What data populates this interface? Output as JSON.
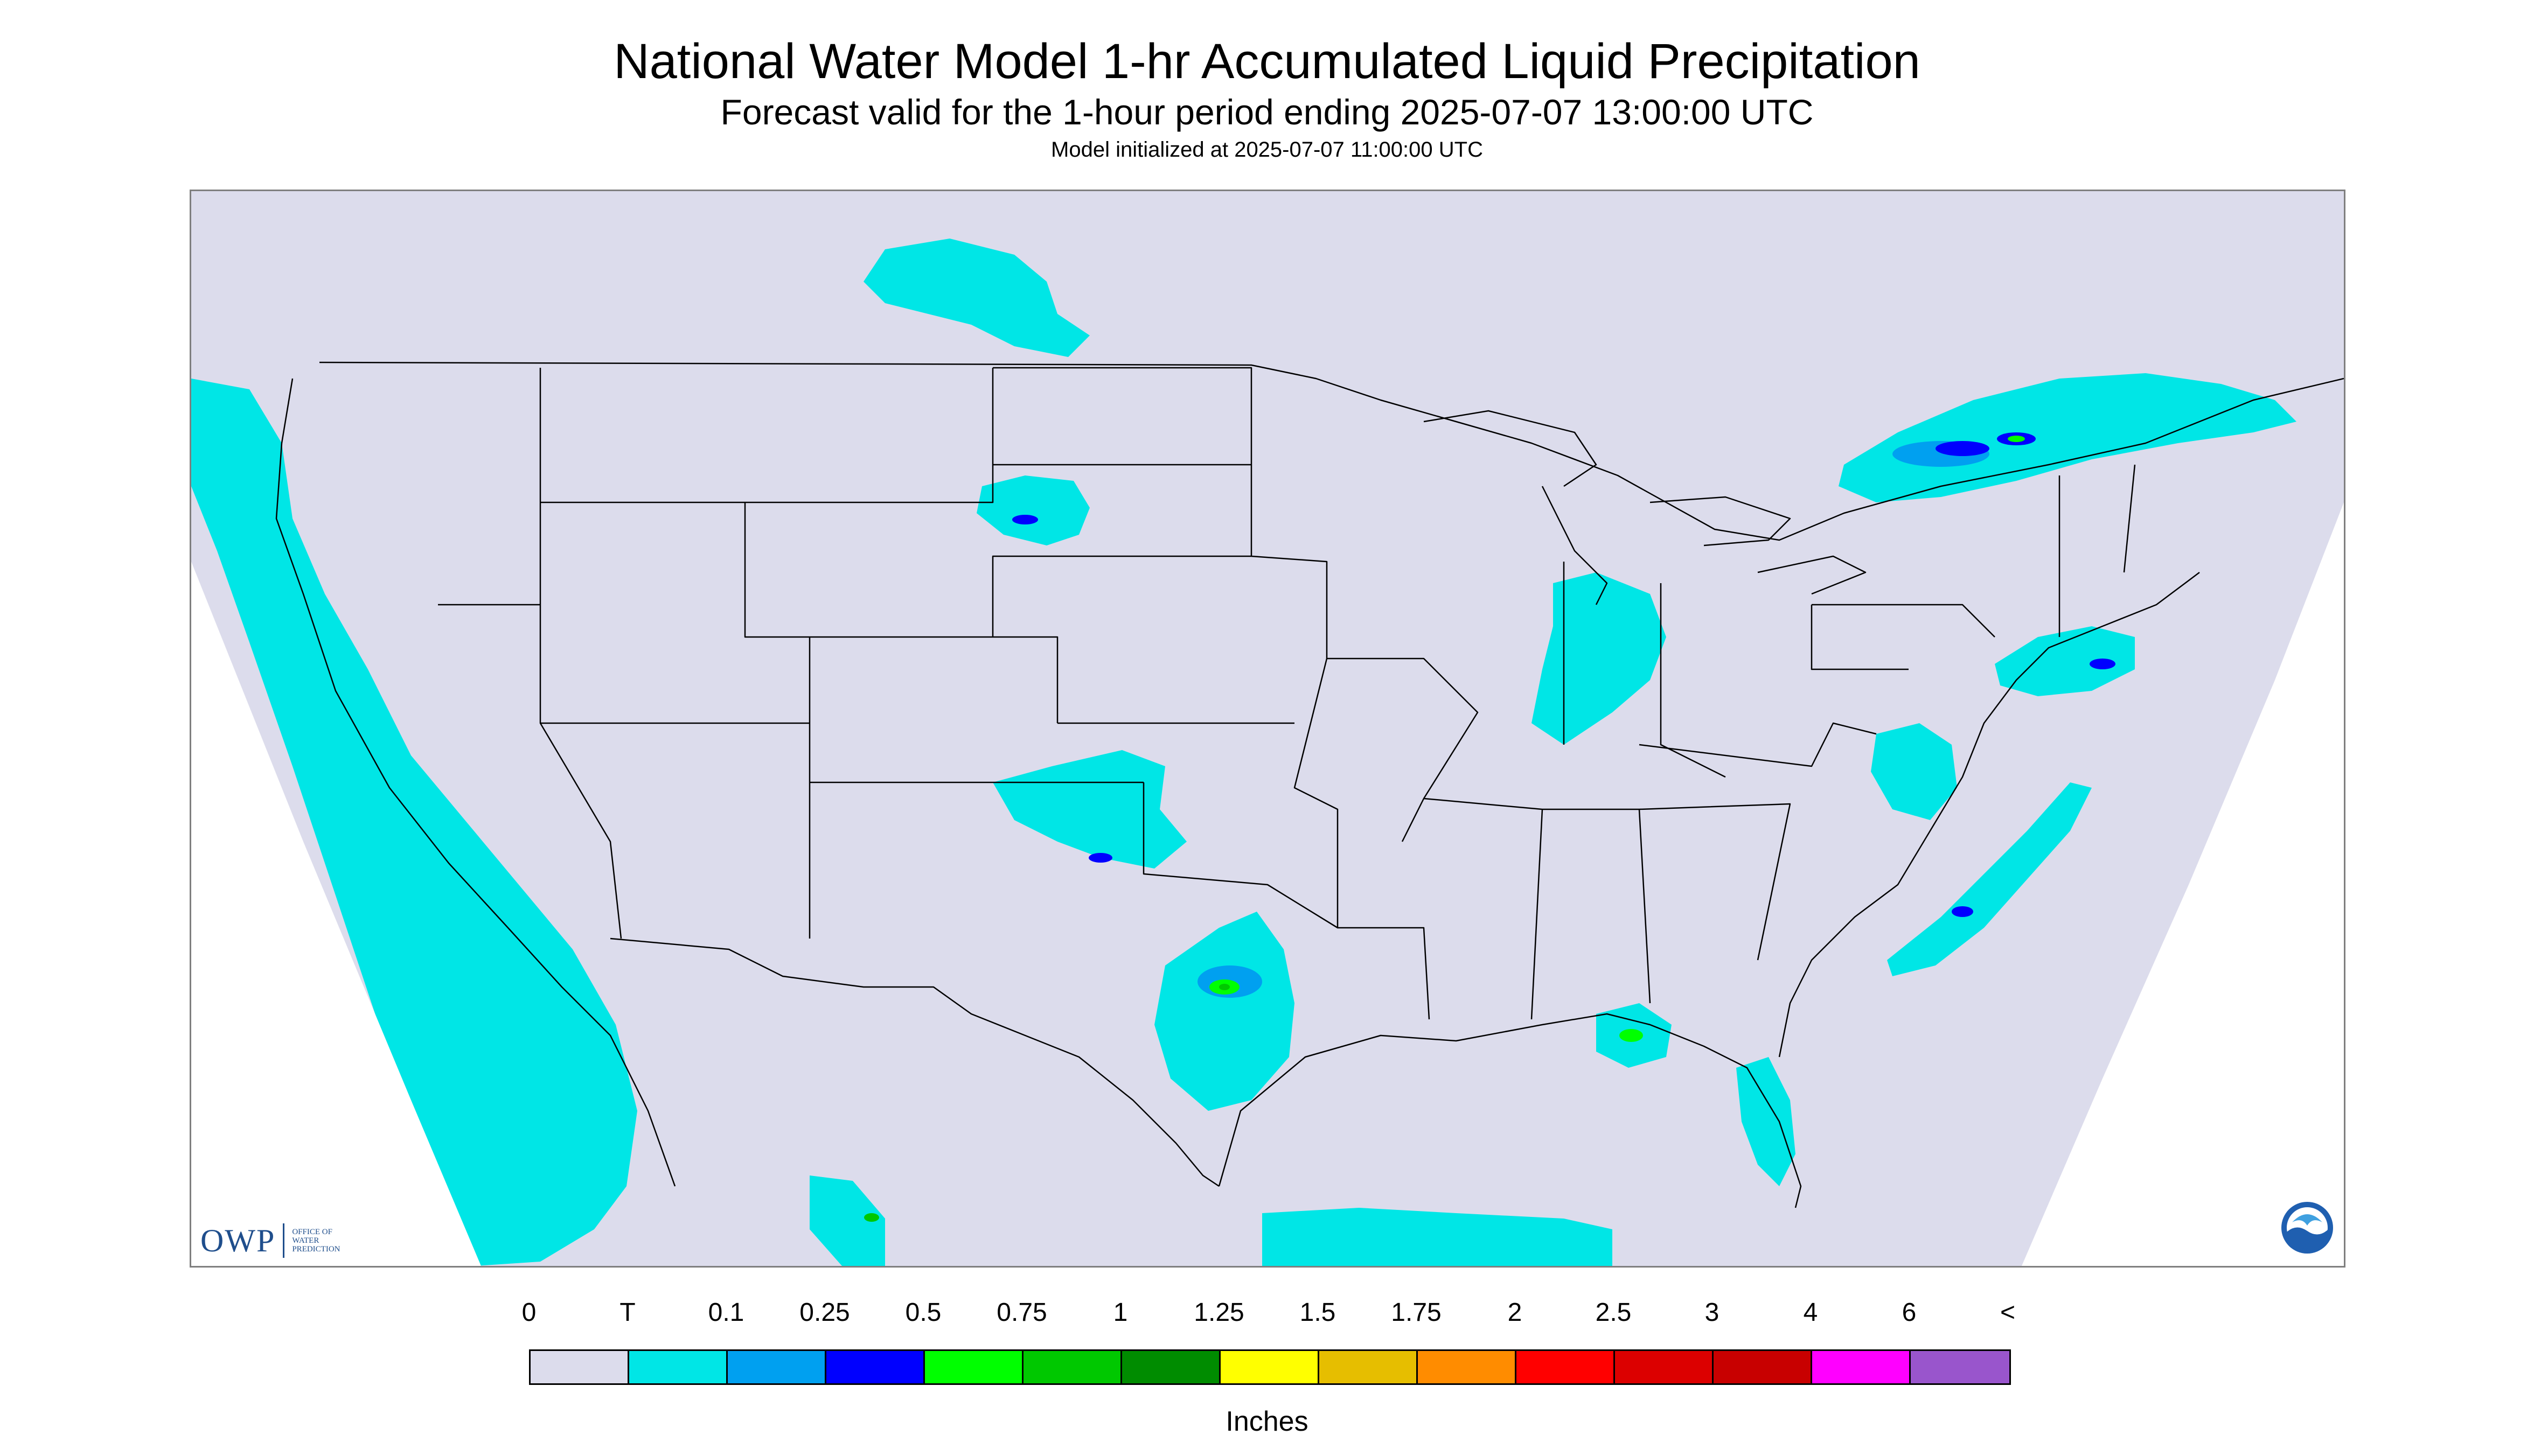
{
  "title": "National Water Model 1-hr Accumulated Liquid Precipitation",
  "subtitle": "Forecast valid for the 1-hour period ending 2025-07-07 13:00:00 UTC",
  "init_line": "Model initialized at 2025-07-07 11:00:00 UTC",
  "colors": {
    "background": "#dcdcec",
    "outside_domain": "#ffffff",
    "trace": "#00e6e6",
    "boundary": "#000000"
  },
  "logos": {
    "owp_text": "OWP",
    "owp_subtext": [
      "OFFICE OF",
      "WATER",
      "PREDICTION"
    ],
    "noaa_text": "NOAA"
  },
  "legend": {
    "labels": [
      "0",
      "T",
      "0.1",
      "0.25",
      "0.5",
      "0.75",
      "1",
      "1.25",
      "1.5",
      "1.75",
      "2",
      "2.5",
      "3",
      "4",
      "6",
      "<"
    ],
    "colors": [
      "#dcdcec",
      "#00e6e6",
      "#00a0f0",
      "#0000ff",
      "#00ff00",
      "#00c800",
      "#008c00",
      "#ffff00",
      "#e6be00",
      "#ff8c00",
      "#ff0000",
      "#dc0000",
      "#c80000",
      "#ff00ff",
      "#9955cc"
    ],
    "units": "Inches"
  },
  "precip_areas": [
    {
      "region": "pacific-northwest-coast",
      "level": "T"
    },
    {
      "region": "california-baja-coast",
      "level": "T"
    },
    {
      "region": "southern-canada-plains",
      "level": "T"
    },
    {
      "region": "south-dakota",
      "level": "0.1"
    },
    {
      "region": "oklahoma-panhandle",
      "level": "0.25"
    },
    {
      "region": "central-texas",
      "level": "0.75"
    },
    {
      "region": "indiana-illinois",
      "level": "T"
    },
    {
      "region": "southern-quebec-ontario",
      "level": "1"
    },
    {
      "region": "new-jersey-long-island",
      "level": "0.5"
    },
    {
      "region": "carolina-offshore",
      "level": "0.5"
    },
    {
      "region": "florida-panhandle-gulf",
      "level": "0.75"
    },
    {
      "region": "florida-peninsula",
      "level": "T"
    },
    {
      "region": "western-mexico",
      "level": "0.25"
    },
    {
      "region": "gulf-south",
      "level": "T"
    }
  ]
}
